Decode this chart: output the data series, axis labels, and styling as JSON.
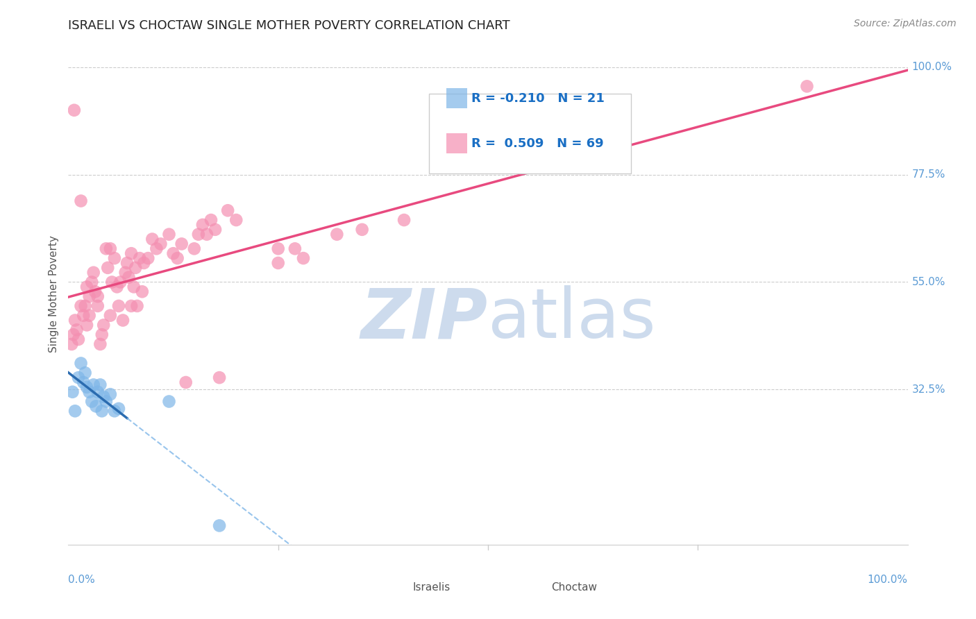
{
  "title": "ISRAELI VS CHOCTAW SINGLE MOTHER POVERTY CORRELATION CHART",
  "source": "Source: ZipAtlas.com",
  "ylabel": "Single Mother Poverty",
  "yticks": [
    0.325,
    0.55,
    0.775,
    1.0
  ],
  "ytick_labels": [
    "32.5%",
    "55.0%",
    "77.5%",
    "100.0%"
  ],
  "xlim": [
    0.0,
    1.0
  ],
  "ylim": [
    0.0,
    1.05
  ],
  "background_color": "#ffffff",
  "grid_color": "#cccccc",
  "title_color": "#222222",
  "axis_label_color": "#5b9bd5",
  "israeli_color": "#7eb6e8",
  "choctaw_color": "#f48fb1",
  "israeli_line_color": "#2b6cb0",
  "choctaw_line_color": "#e84a7f",
  "israeli_R": -0.21,
  "israeli_N": 21,
  "choctaw_R": 0.509,
  "choctaw_N": 69,
  "legend_text_color": "#1a6fc4",
  "watermark_color": "#c8d8eb",
  "israeli_x": [
    0.005,
    0.008,
    0.012,
    0.015,
    0.018,
    0.02,
    0.022,
    0.025,
    0.028,
    0.03,
    0.033,
    0.035,
    0.038,
    0.04,
    0.042,
    0.045,
    0.05,
    0.055,
    0.06,
    0.12,
    0.18
  ],
  "israeli_y": [
    0.32,
    0.28,
    0.35,
    0.38,
    0.34,
    0.36,
    0.33,
    0.32,
    0.3,
    0.335,
    0.29,
    0.32,
    0.335,
    0.28,
    0.31,
    0.3,
    0.315,
    0.28,
    0.285,
    0.3,
    0.04
  ],
  "choctaw_x": [
    0.004,
    0.006,
    0.007,
    0.008,
    0.01,
    0.012,
    0.015,
    0.015,
    0.018,
    0.02,
    0.022,
    0.022,
    0.025,
    0.025,
    0.028,
    0.03,
    0.032,
    0.035,
    0.035,
    0.038,
    0.04,
    0.042,
    0.045,
    0.047,
    0.05,
    0.05,
    0.052,
    0.055,
    0.058,
    0.06,
    0.062,
    0.065,
    0.068,
    0.07,
    0.072,
    0.075,
    0.075,
    0.078,
    0.08,
    0.082,
    0.085,
    0.088,
    0.09,
    0.095,
    0.1,
    0.105,
    0.11,
    0.12,
    0.125,
    0.13,
    0.135,
    0.14,
    0.15,
    0.155,
    0.16,
    0.165,
    0.17,
    0.175,
    0.18,
    0.19,
    0.2,
    0.25,
    0.28,
    0.32,
    0.35,
    0.4,
    0.25,
    0.27,
    0.88
  ],
  "choctaw_y": [
    0.42,
    0.44,
    0.91,
    0.47,
    0.45,
    0.43,
    0.5,
    0.72,
    0.48,
    0.5,
    0.54,
    0.46,
    0.52,
    0.48,
    0.55,
    0.57,
    0.53,
    0.5,
    0.52,
    0.42,
    0.44,
    0.46,
    0.62,
    0.58,
    0.48,
    0.62,
    0.55,
    0.6,
    0.54,
    0.5,
    0.55,
    0.47,
    0.57,
    0.59,
    0.56,
    0.61,
    0.5,
    0.54,
    0.58,
    0.5,
    0.6,
    0.53,
    0.59,
    0.6,
    0.64,
    0.62,
    0.63,
    0.65,
    0.61,
    0.6,
    0.63,
    0.34,
    0.62,
    0.65,
    0.67,
    0.65,
    0.68,
    0.66,
    0.35,
    0.7,
    0.68,
    0.62,
    0.6,
    0.65,
    0.66,
    0.68,
    0.59,
    0.62,
    0.96
  ]
}
